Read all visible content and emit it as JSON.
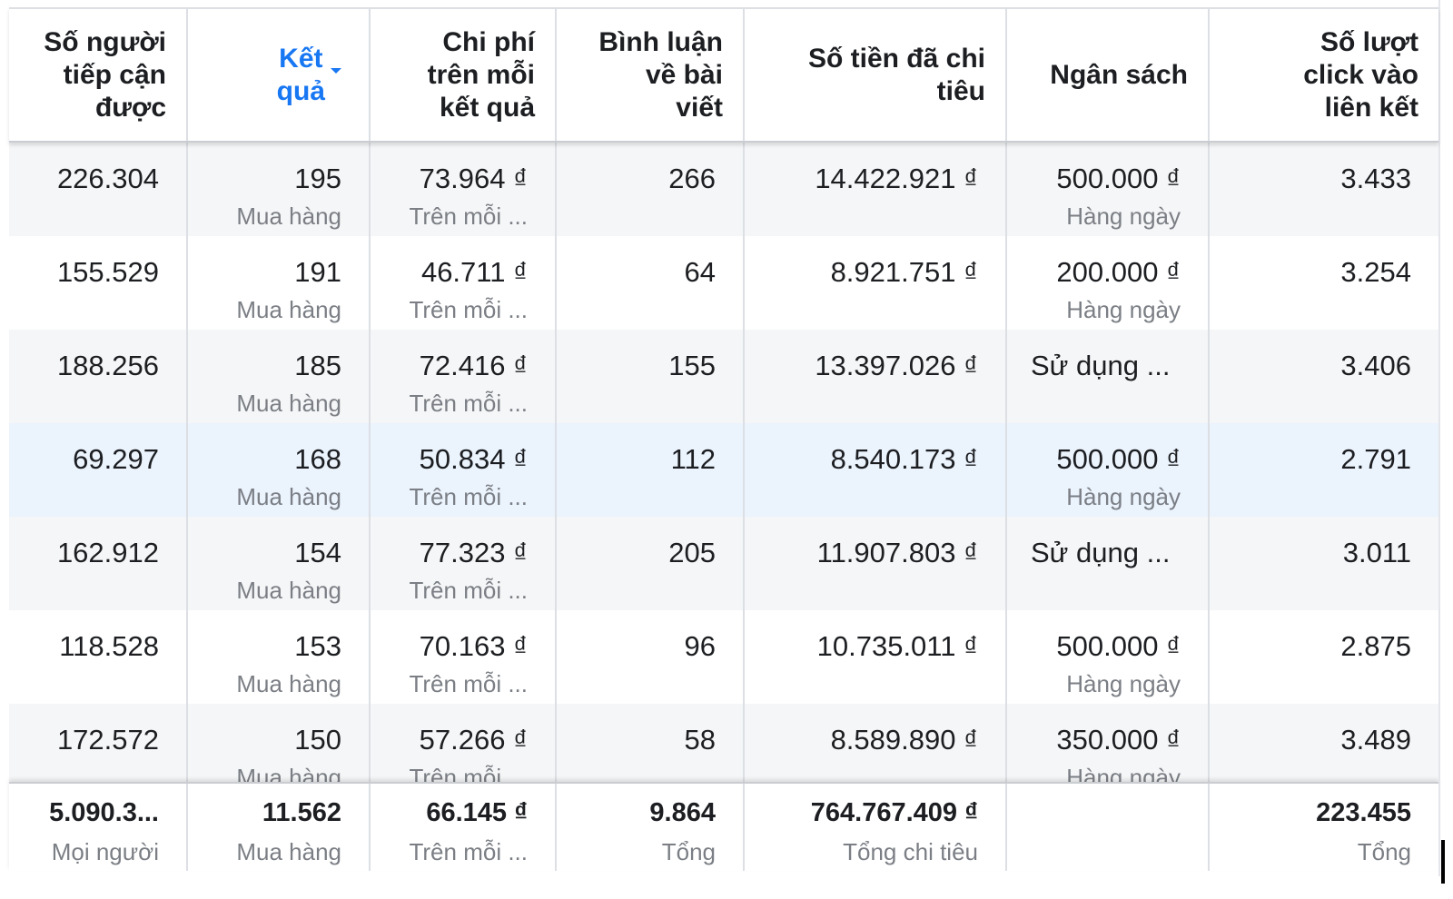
{
  "columns": [
    "Số người\ntiếp cận\nđược",
    "Kết\nquả",
    "Chi phí\ntrên mỗi\nkết quả",
    "Bình luận\nvề bài\nviết",
    "Số tiền đã chi\ntiêu",
    "Ngân sách",
    "Số lượt\nclick vào\nliên kết"
  ],
  "rows": [
    {
      "reach": "226.304",
      "results": "195",
      "results_sub": "Mua hàng",
      "cpr": "73.964 ₫",
      "cpr_sub": "Trên mỗi ...",
      "comments": "266",
      "spent": "14.422.921 ₫",
      "budget": "500.000 ₫",
      "budget_sub": "Hàng ngày",
      "clicks": "3.433"
    },
    {
      "reach": "155.529",
      "results": "191",
      "results_sub": "Mua hàng",
      "cpr": "46.711 ₫",
      "cpr_sub": "Trên mỗi ...",
      "comments": "64",
      "spent": "8.921.751 ₫",
      "budget": "200.000 ₫",
      "budget_sub": "Hàng ngày",
      "clicks": "3.254"
    },
    {
      "reach": "188.256",
      "results": "185",
      "results_sub": "Mua hàng",
      "cpr": "72.416 ₫",
      "cpr_sub": "Trên mỗi ...",
      "comments": "155",
      "spent": "13.397.026 ₫",
      "budget": "Sử dụng ...",
      "budget_sub": "",
      "clicks": "3.406"
    },
    {
      "reach": "69.297",
      "results": "168",
      "results_sub": "Mua hàng",
      "cpr": "50.834 ₫",
      "cpr_sub": "Trên mỗi ...",
      "comments": "112",
      "spent": "8.540.173 ₫",
      "budget": "500.000 ₫",
      "budget_sub": "Hàng ngày",
      "clicks": "2.791"
    },
    {
      "reach": "162.912",
      "results": "154",
      "results_sub": "Mua hàng",
      "cpr": "77.323 ₫",
      "cpr_sub": "Trên mỗi ...",
      "comments": "205",
      "spent": "11.907.803 ₫",
      "budget": "Sử dụng ...",
      "budget_sub": "",
      "clicks": "3.011"
    },
    {
      "reach": "118.528",
      "results": "153",
      "results_sub": "Mua hàng",
      "cpr": "70.163 ₫",
      "cpr_sub": "Trên mỗi ...",
      "comments": "96",
      "spent": "10.735.011 ₫",
      "budget": "500.000 ₫",
      "budget_sub": "Hàng ngày",
      "clicks": "2.875"
    },
    {
      "reach": "172.572",
      "results": "150",
      "results_sub": "Mua hàng",
      "cpr": "57.266 ₫",
      "cpr_sub": "Trên mỗi ...",
      "comments": "58",
      "spent": "8.589.890 ₫",
      "budget": "350.000 ₫",
      "budget_sub": "Hàng ngày",
      "clicks": "3.489"
    }
  ],
  "totals": {
    "reach": "5.090.3...",
    "reach_sub": "Mọi người",
    "results": "11.562",
    "results_sub": "Mua hàng",
    "cpr": "66.145 ₫",
    "cpr_sub": "Trên mỗi ...",
    "comments": "9.864",
    "comments_sub": "Tổng",
    "spent": "764.767.409 ₫",
    "spent_sub": "Tổng chi tiêu",
    "clicks": "223.455",
    "clicks_sub": "Tổng"
  },
  "sort_indicator_icon": "caret-down-icon",
  "colors": {
    "accent": "#1877f2",
    "row_shade": "#f5f6f7",
    "row_highlight": "#ebf3fd",
    "muted_text": "#7b7f85"
  }
}
